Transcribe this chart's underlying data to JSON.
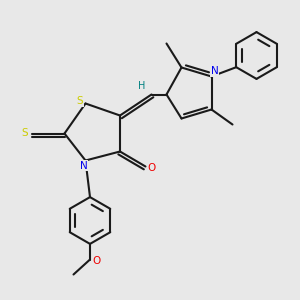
{
  "bg_color": "#e8e8e8",
  "bond_color": "#1a1a1a",
  "S_color": "#cccc00",
  "N_color": "#0000ee",
  "O_color": "#ee0000",
  "H_color": "#008080",
  "line_width": 1.5,
  "figsize": [
    3.0,
    3.0
  ],
  "dpi": 100,
  "xlim": [
    0,
    10
  ],
  "ylim": [
    0,
    10
  ]
}
